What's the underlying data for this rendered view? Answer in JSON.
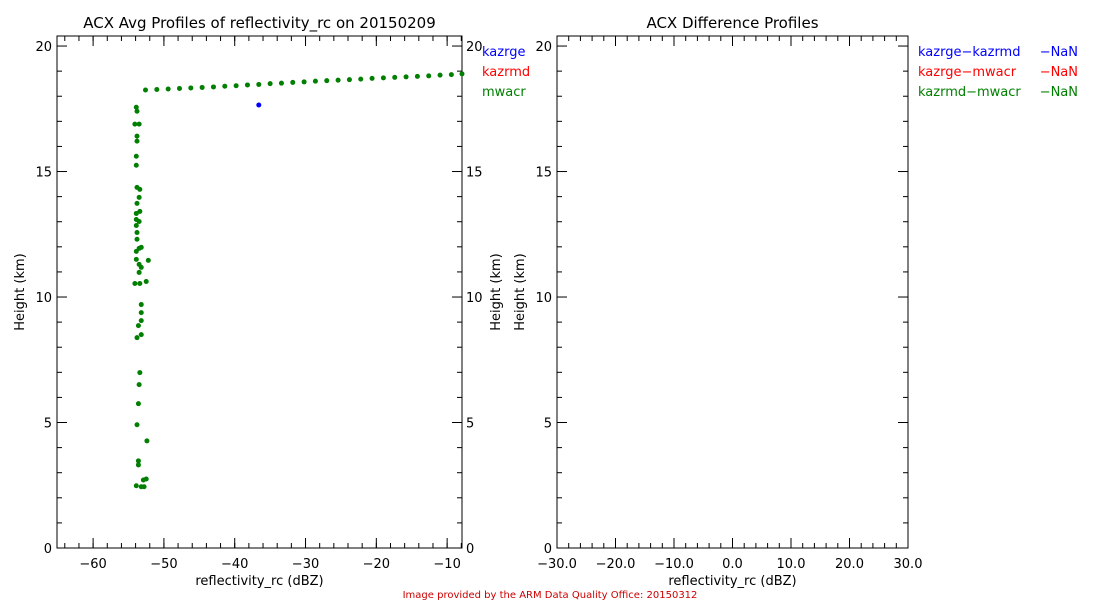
{
  "chart_data": [
    {
      "type": "scatter",
      "title": "ACX Avg Profiles of reflectivity_rc on 20150209",
      "xlabel": "reflectivity_rc (dBZ)",
      "ylabel": "Height (km)",
      "ylabel_right": "Height (km)",
      "xlim": [
        -65.1,
        -7.9
      ],
      "ylim": [
        0,
        20.4
      ],
      "xticks": [
        -60,
        -50,
        -40,
        -30,
        -20,
        -10
      ],
      "xtick_labels": [
        "−60",
        "−50",
        "−40",
        "−30",
        "−20",
        "−10"
      ],
      "yticks": [
        0,
        5,
        10,
        15,
        20
      ],
      "ytick_labels": [
        "0",
        "5",
        "10",
        "15",
        "20"
      ],
      "grid": false,
      "legend_placement": "right-outside-top",
      "series": [
        {
          "name": "kazrge",
          "color": "#0000ff",
          "points": [
            [
              -36.6,
              17.65
            ]
          ]
        },
        {
          "name": "kazrmd",
          "color": "#ff0000",
          "points": []
        },
        {
          "name": "mwacr",
          "color": "#007f00",
          "points": [
            [
              -53.9,
              17.56
            ],
            [
              -53.8,
              17.4
            ],
            [
              -54.1,
              16.89
            ],
            [
              -53.5,
              16.89
            ],
            [
              -53.8,
              16.41
            ],
            [
              -53.8,
              16.21
            ],
            [
              -53.9,
              15.61
            ],
            [
              -53.9,
              15.25
            ],
            [
              -53.8,
              14.37
            ],
            [
              -53.4,
              14.29
            ],
            [
              -53.5,
              13.97
            ],
            [
              -53.8,
              13.73
            ],
            [
              -53.4,
              13.41
            ],
            [
              -53.9,
              13.33
            ],
            [
              -53.9,
              13.09
            ],
            [
              -53.9,
              12.85
            ],
            [
              -53.5,
              13.01
            ],
            [
              -53.8,
              12.57
            ],
            [
              -53.8,
              12.3
            ],
            [
              -53.9,
              11.82
            ],
            [
              -53.5,
              11.94
            ],
            [
              -53.2,
              11.98
            ],
            [
              -53.9,
              11.5
            ],
            [
              -53.5,
              11.3
            ],
            [
              -53.2,
              11.18
            ],
            [
              -52.2,
              11.46
            ],
            [
              -53.5,
              10.98
            ],
            [
              -53.4,
              10.54
            ],
            [
              -54.1,
              10.54
            ],
            [
              -52.5,
              10.62
            ],
            [
              -53.2,
              9.7
            ],
            [
              -53.2,
              9.38
            ],
            [
              -53.2,
              9.06
            ],
            [
              -53.6,
              8.86
            ],
            [
              -53.8,
              8.38
            ],
            [
              -53.2,
              8.5
            ],
            [
              -53.4,
              6.99
            ],
            [
              -53.5,
              6.51
            ],
            [
              -53.6,
              5.75
            ],
            [
              -53.8,
              4.91
            ],
            [
              -52.4,
              4.27
            ],
            [
              -53.6,
              3.47
            ],
            [
              -53.6,
              3.31
            ],
            [
              -53.9,
              2.48
            ],
            [
              -52.5,
              2.75
            ],
            [
              -53.2,
              2.44
            ],
            [
              -52.8,
              2.44
            ],
            [
              -52.9,
              2.71
            ],
            [
              -52.6,
              18.25
            ],
            [
              -51.0,
              18.27
            ],
            [
              -49.4,
              18.29
            ],
            [
              -47.8,
              18.31
            ],
            [
              -46.2,
              18.33
            ],
            [
              -44.6,
              18.35
            ],
            [
              -43.0,
              18.37
            ],
            [
              -41.4,
              18.4
            ],
            [
              -39.8,
              18.42
            ],
            [
              -38.2,
              18.45
            ],
            [
              -36.6,
              18.47
            ],
            [
              -35.0,
              18.5
            ],
            [
              -33.4,
              18.52
            ],
            [
              -31.8,
              18.55
            ],
            [
              -30.2,
              18.57
            ],
            [
              -28.6,
              18.6
            ],
            [
              -27.0,
              18.62
            ],
            [
              -25.4,
              18.64
            ],
            [
              -23.8,
              18.66
            ],
            [
              -22.2,
              18.68
            ],
            [
              -20.6,
              18.71
            ],
            [
              -19.0,
              18.73
            ],
            [
              -17.4,
              18.75
            ],
            [
              -15.8,
              18.77
            ],
            [
              -14.2,
              18.79
            ],
            [
              -12.6,
              18.81
            ],
            [
              -11.0,
              18.84
            ],
            [
              -9.4,
              18.86
            ],
            [
              -7.9,
              18.89
            ]
          ]
        }
      ]
    },
    {
      "type": "scatter",
      "title": "ACX Difference Profiles",
      "xlabel": "reflectivity_rc (dBZ)",
      "ylabel": "Height (km)",
      "xlim": [
        -30,
        30
      ],
      "ylim": [
        0,
        20.4
      ],
      "xticks": [
        -30,
        -20,
        -10,
        0,
        10,
        20,
        30
      ],
      "xtick_labels": [
        "−30.0",
        "−20.0",
        "−10.0",
        "0.0",
        "10.0",
        "20.0",
        "30.0"
      ],
      "yticks": [
        0,
        5,
        10,
        15,
        20
      ],
      "ytick_labels": [
        "0",
        "5",
        "10",
        "15",
        "20"
      ],
      "grid": false,
      "legend_placement": "right-outside-top",
      "series": [
        {
          "name": "kazrge−kazrmd",
          "value": "−NaN",
          "color": "#0000ff",
          "points": []
        },
        {
          "name": "kazrge−mwacr",
          "value": "−NaN",
          "color": "#ff0000",
          "points": []
        },
        {
          "name": "kazrmd−mwacr",
          "value": "−NaN",
          "color": "#007f00",
          "points": []
        }
      ]
    }
  ],
  "footer": {
    "text": "Image provided by the ARM Data Quality Office: 20150312",
    "color": "#cc0000"
  }
}
